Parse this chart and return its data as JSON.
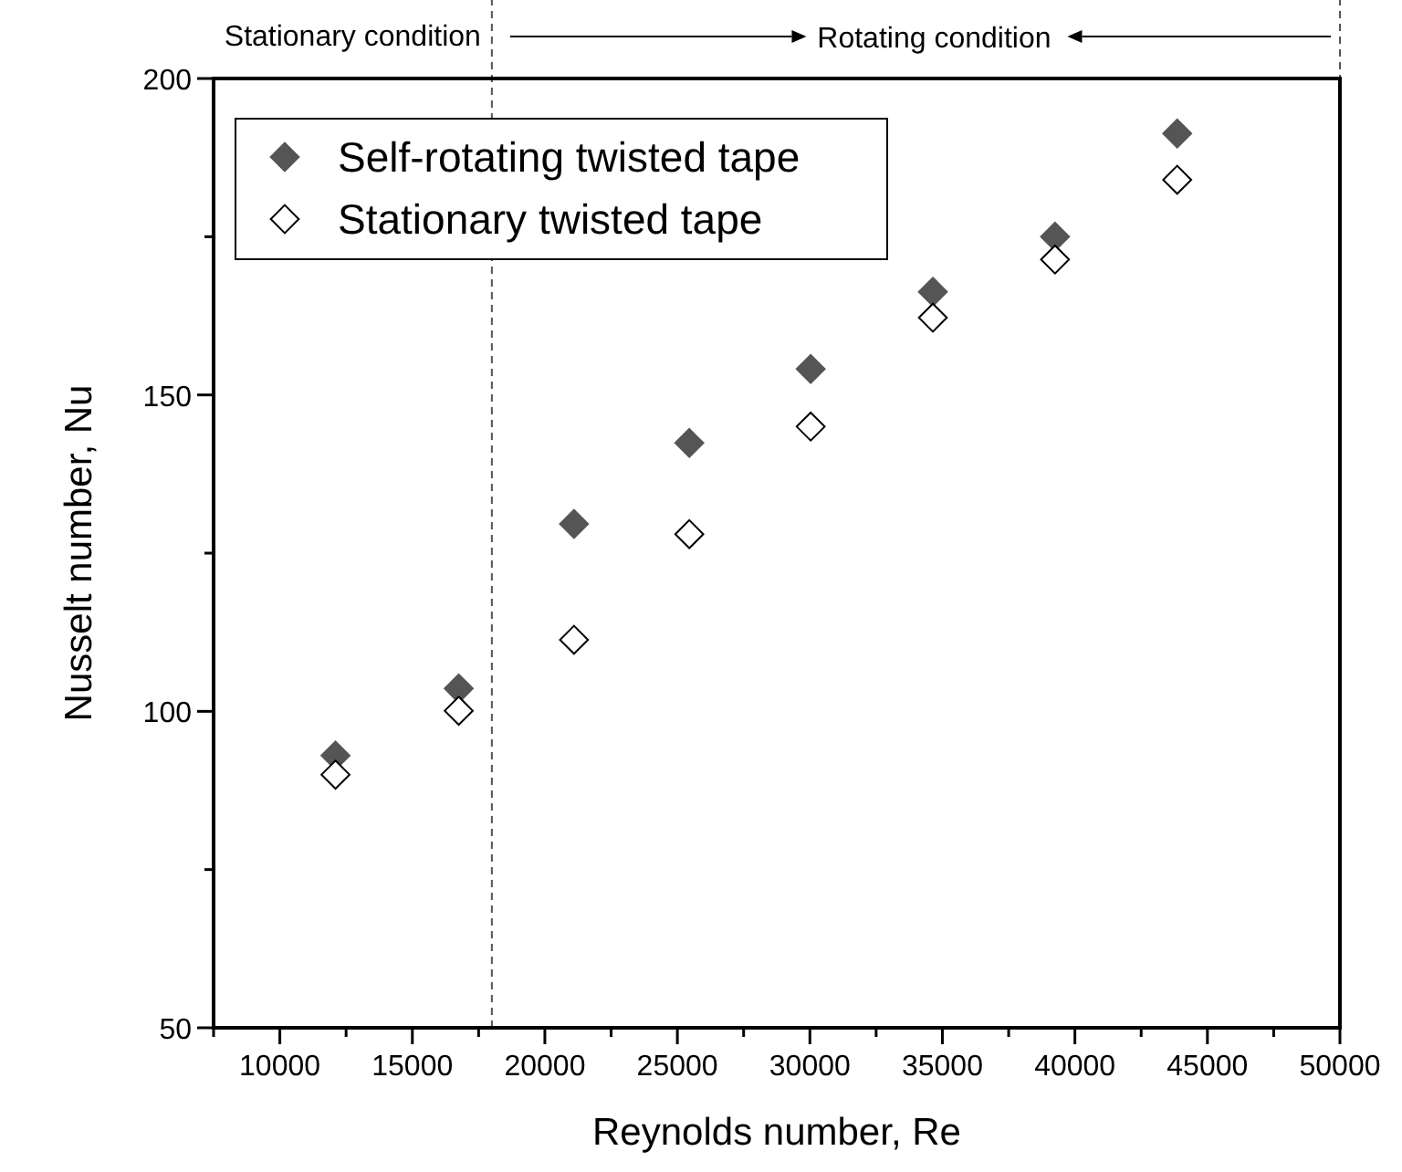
{
  "chart_data": {
    "type": "scatter",
    "xlabel": "Reynolds number, Re",
    "ylabel": "Nusselt number, Nu",
    "xlim": [
      7500,
      50000
    ],
    "ylim": [
      50,
      200
    ],
    "xticks": [
      {
        "value": 7500,
        "label": null
      },
      10000,
      {
        "value": 12500,
        "label": null
      },
      15000,
      {
        "value": 17500,
        "label": null
      },
      20000,
      {
        "value": 22500,
        "label": null
      },
      25000,
      {
        "value": 27500,
        "label": null
      },
      30000,
      {
        "value": 32500,
        "label": null
      },
      35000,
      {
        "value": 37500,
        "label": null
      },
      40000,
      {
        "value": 42500,
        "label": null
      },
      45000,
      {
        "value": 47500,
        "label": null
      },
      50000
    ],
    "yticks": [
      50,
      {
        "value": 75,
        "label": null
      },
      100,
      {
        "value": 125,
        "label": null
      },
      150,
      {
        "value": 175,
        "label": null
      },
      200
    ],
    "grid": false,
    "legend": "top left",
    "marker": "diamond",
    "series": [
      {
        "name": "Self-rotating twisted tape",
        "color": "#555555",
        "x": [
          12100,
          16750,
          21100,
          25450,
          30030,
          34640,
          39250,
          43860
        ],
        "values": [
          93.0,
          103.6,
          129.6,
          142.4,
          154.1,
          166.3,
          175.0,
          191.3
        ]
      },
      {
        "name": "Stationary twisted tape",
        "color": "#ffffff",
        "x": [
          12100,
          16750,
          21100,
          25450,
          30030,
          34640,
          39250,
          43860
        ],
        "values": [
          90.0,
          100.1,
          111.3,
          128.0,
          145.0,
          162.2,
          171.4,
          184.0
        ]
      }
    ],
    "ref_lines": [
      {
        "axis": "x",
        "value": 18000,
        "line_style": "dashed",
        "color": "#555555"
      },
      {
        "axis": "x",
        "value": 50000,
        "line_style": "dashed",
        "color": "#555555"
      }
    ],
    "annotations": [
      "Stationary condition",
      "Rotating condition"
    ]
  }
}
